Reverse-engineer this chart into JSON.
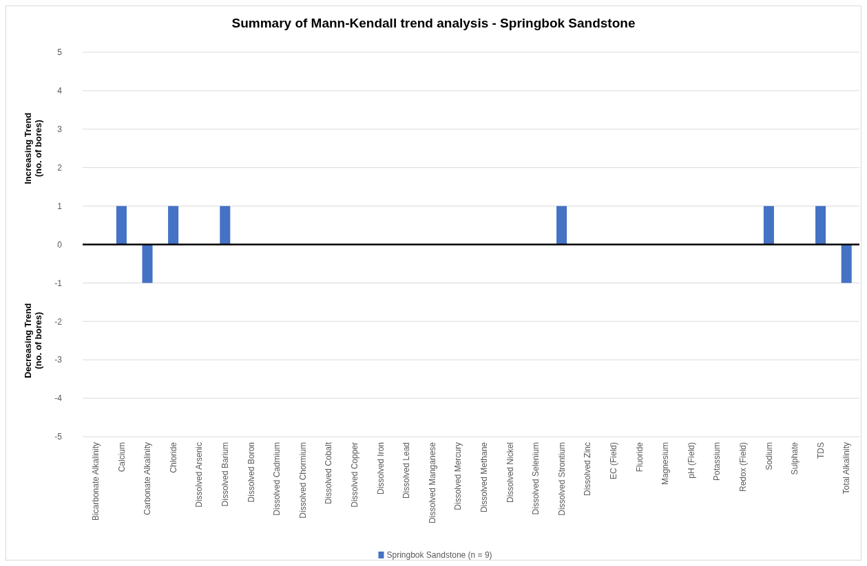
{
  "chart_data": {
    "type": "bar",
    "title": "Summary of Mann-Kendall trend analysis - Springbok Sandstone",
    "categories": [
      "Bicarbonate Alkalinity",
      "Calcium",
      "Carbonate Alkalinity",
      "Chloride",
      "Dissolved Arsenic",
      "Dissolved Barium",
      "Dissolved Boron",
      "Dissolved Cadmium",
      "Dissolved Chormium",
      "Dissolved Cobalt",
      "Dissolved Copper",
      "Dissolved Iron",
      "Dissolved Lead",
      "Dissolved Manganese",
      "Dissolved Mercury",
      "Dissolved Methane",
      "Dissolved Nickel",
      "Dissolved Selenium",
      "Dissolved Strontium",
      "Dissolved Zinc",
      "EC (Field)",
      "Fluoride",
      "Magnesium",
      "pH (Field)",
      "Potassium",
      "Redox (Field)",
      "Sodium",
      "Sulphate",
      "TDS",
      "Total Alkalinity"
    ],
    "series": [
      {
        "name": "Springbok Sandstone (n = 9)",
        "color": "#4472c4",
        "values": [
          0,
          1,
          -1,
          1,
          0,
          1,
          0,
          0,
          0,
          0,
          0,
          0,
          0,
          0,
          0,
          0,
          0,
          0,
          1,
          0,
          0,
          0,
          0,
          0,
          0,
          0,
          1,
          0,
          1,
          -1
        ]
      }
    ],
    "ylabel": "Increasing Trend (no. of bores)",
    "annotations": [
      "Decreasing Trend (no. of bores)"
    ],
    "ylim": [
      -5,
      5
    ],
    "yticks": [
      -5,
      -4,
      -3,
      -2,
      -1,
      0,
      1,
      2,
      3,
      4,
      5
    ],
    "grid": "y",
    "legend": "bottom"
  }
}
